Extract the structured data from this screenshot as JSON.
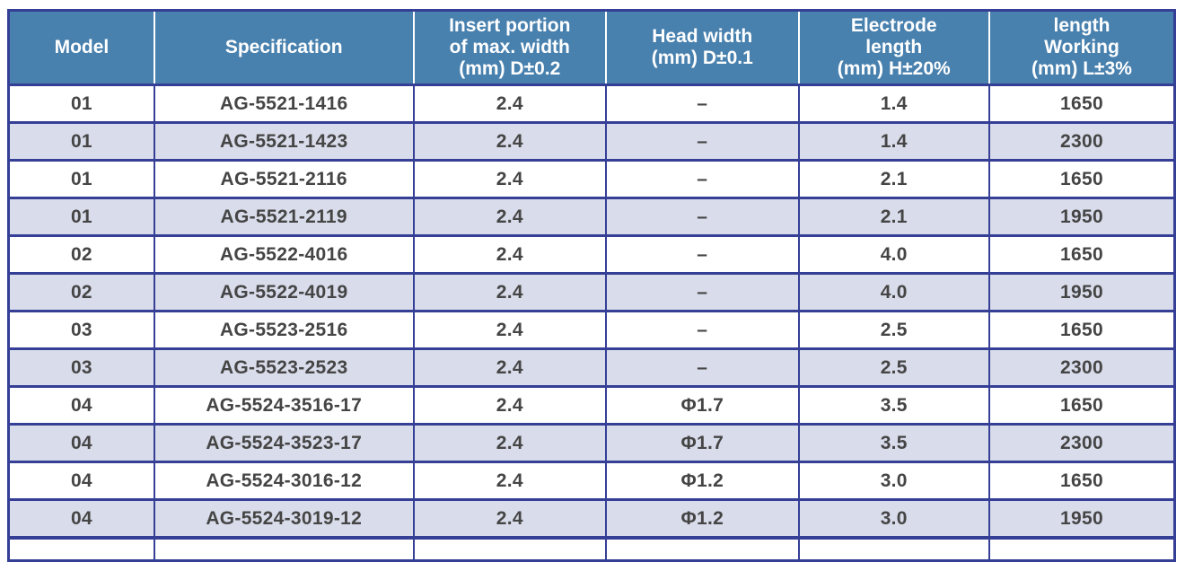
{
  "title": "Electrode model specification table",
  "colors": {
    "header_bg": "#4880ae",
    "header_text": "#ffffff",
    "row_bg": "#ffffff",
    "row_alt_bg": "#d9dcea",
    "border": "#353f96",
    "cell_text": "#454545"
  },
  "table": {
    "columns": [
      {
        "key": "model",
        "label": "Model"
      },
      {
        "key": "specification",
        "label": "Specification"
      },
      {
        "key": "insert-width",
        "label": "Insert portion\nof max. width\n(mm) D±0.2"
      },
      {
        "key": "head-width",
        "label": "Head width\n(mm) D±0.1"
      },
      {
        "key": "electrode-length",
        "label": "Electrode\nlength\n(mm) H±20%"
      },
      {
        "key": "working-length",
        "label": "length\nWorking\n(mm) L±3%"
      }
    ],
    "rows": [
      [
        "01",
        "AG-5521-1416",
        "2.4",
        "–",
        "1.4",
        "1650"
      ],
      [
        "01",
        "AG-5521-1423",
        "2.4",
        "–",
        "1.4",
        "2300"
      ],
      [
        "01",
        "AG-5521-2116",
        "2.4",
        "–",
        "2.1",
        "1650"
      ],
      [
        "01",
        "AG-5521-2119",
        "2.4",
        "–",
        "2.1",
        "1950"
      ],
      [
        "02",
        "AG-5522-4016",
        "2.4",
        "–",
        "4.0",
        "1650"
      ],
      [
        "02",
        "AG-5522-4019",
        "2.4",
        "–",
        "4.0",
        "1950"
      ],
      [
        "03",
        "AG-5523-2516",
        "2.4",
        "–",
        "2.5",
        "1650"
      ],
      [
        "03",
        "AG-5523-2523",
        "2.4",
        "–",
        "2.5",
        "2300"
      ],
      [
        "04",
        "AG-5524-3516-17",
        "2.4",
        "Φ1.7",
        "3.5",
        "1650"
      ],
      [
        "04",
        "AG-5524-3523-17",
        "2.4",
        "Φ1.7",
        "3.5",
        "2300"
      ],
      [
        "04",
        "AG-5524-3016-12",
        "2.4",
        "Φ1.2",
        "3.0",
        "1650"
      ],
      [
        "04",
        "AG-5524-3019-12",
        "2.4",
        "Φ1.2",
        "3.0",
        "1950"
      ]
    ]
  },
  "chart_data": {
    "type": "table",
    "columns": [
      "Model",
      "Specification",
      "Insert portion of max. width (mm) D±0.2",
      "Head width (mm) D±0.1",
      "Electrode length (mm) H±20%",
      "length Working (mm) L±3%"
    ],
    "rows": [
      [
        "01",
        "AG-5521-1416",
        "2.4",
        "–",
        "1.4",
        "1650"
      ],
      [
        "01",
        "AG-5521-1423",
        "2.4",
        "–",
        "1.4",
        "2300"
      ],
      [
        "01",
        "AG-5521-2116",
        "2.4",
        "–",
        "2.1",
        "1650"
      ],
      [
        "01",
        "AG-5521-2119",
        "2.4",
        "–",
        "2.1",
        "1950"
      ],
      [
        "02",
        "AG-5522-4016",
        "2.4",
        "–",
        "4.0",
        "1650"
      ],
      [
        "02",
        "AG-5522-4019",
        "2.4",
        "–",
        "4.0",
        "1950"
      ],
      [
        "03",
        "AG-5523-2516",
        "2.4",
        "–",
        "2.5",
        "1650"
      ],
      [
        "03",
        "AG-5523-2523",
        "2.4",
        "–",
        "2.5",
        "2300"
      ],
      [
        "04",
        "AG-5524-3516-17",
        "2.4",
        "Φ1.7",
        "3.5",
        "1650"
      ],
      [
        "04",
        "AG-5524-3523-17",
        "2.4",
        "Φ1.7",
        "3.5",
        "2300"
      ],
      [
        "04",
        "AG-5524-3016-12",
        "2.4",
        "Φ1.2",
        "3.0",
        "1650"
      ],
      [
        "04",
        "AG-5524-3019-12",
        "2.4",
        "Φ1.2",
        "3.0",
        "1950"
      ]
    ]
  }
}
